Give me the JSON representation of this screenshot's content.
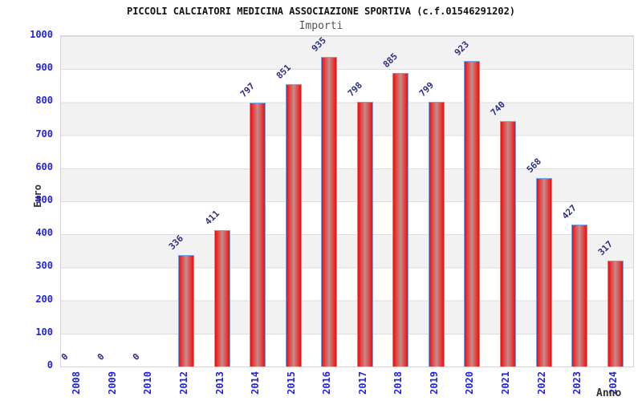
{
  "header": {
    "title": "PICCOLI CALCIATORI MEDICINA ASSOCIAZIONE SPORTIVA (c.f.01546291202)",
    "subtitle": "Importi"
  },
  "chart_data": {
    "type": "bar",
    "title": "PICCOLI CALCIATORI MEDICINA ASSOCIAZIONE SPORTIVA (c.f.01546291202)",
    "subtitle": "Importi",
    "xlabel": "Anno",
    "ylabel": "Euro",
    "categories": [
      "2008",
      "2009",
      "2010",
      "2012",
      "2013",
      "2014",
      "2015",
      "2016",
      "2017",
      "2018",
      "2019",
      "2020",
      "2021",
      "2022",
      "2023",
      "2024"
    ],
    "values": [
      0,
      0,
      0,
      336,
      411,
      797,
      851,
      935,
      798,
      885,
      799,
      923,
      740,
      568,
      427,
      317
    ],
    "ylim": [
      0,
      1000
    ],
    "y_ticks": [
      0,
      100,
      200,
      300,
      400,
      500,
      600,
      700,
      800,
      900,
      1000
    ],
    "grid": "horizontal-bands",
    "legend": "none",
    "colors": {
      "bar_fill_edge": "#ea0f0f",
      "bar_fill_center": "#c28d8d",
      "bar_border": "#74a2e8",
      "axis_tick_text": "#2323dd",
      "value_label_text": "#2d2d88",
      "band_gray": "#f2f2f2",
      "gridline": "#dddddd",
      "title_text": "#111111",
      "subtitle_text": "#555555",
      "axis_title_text": "#333333"
    }
  }
}
